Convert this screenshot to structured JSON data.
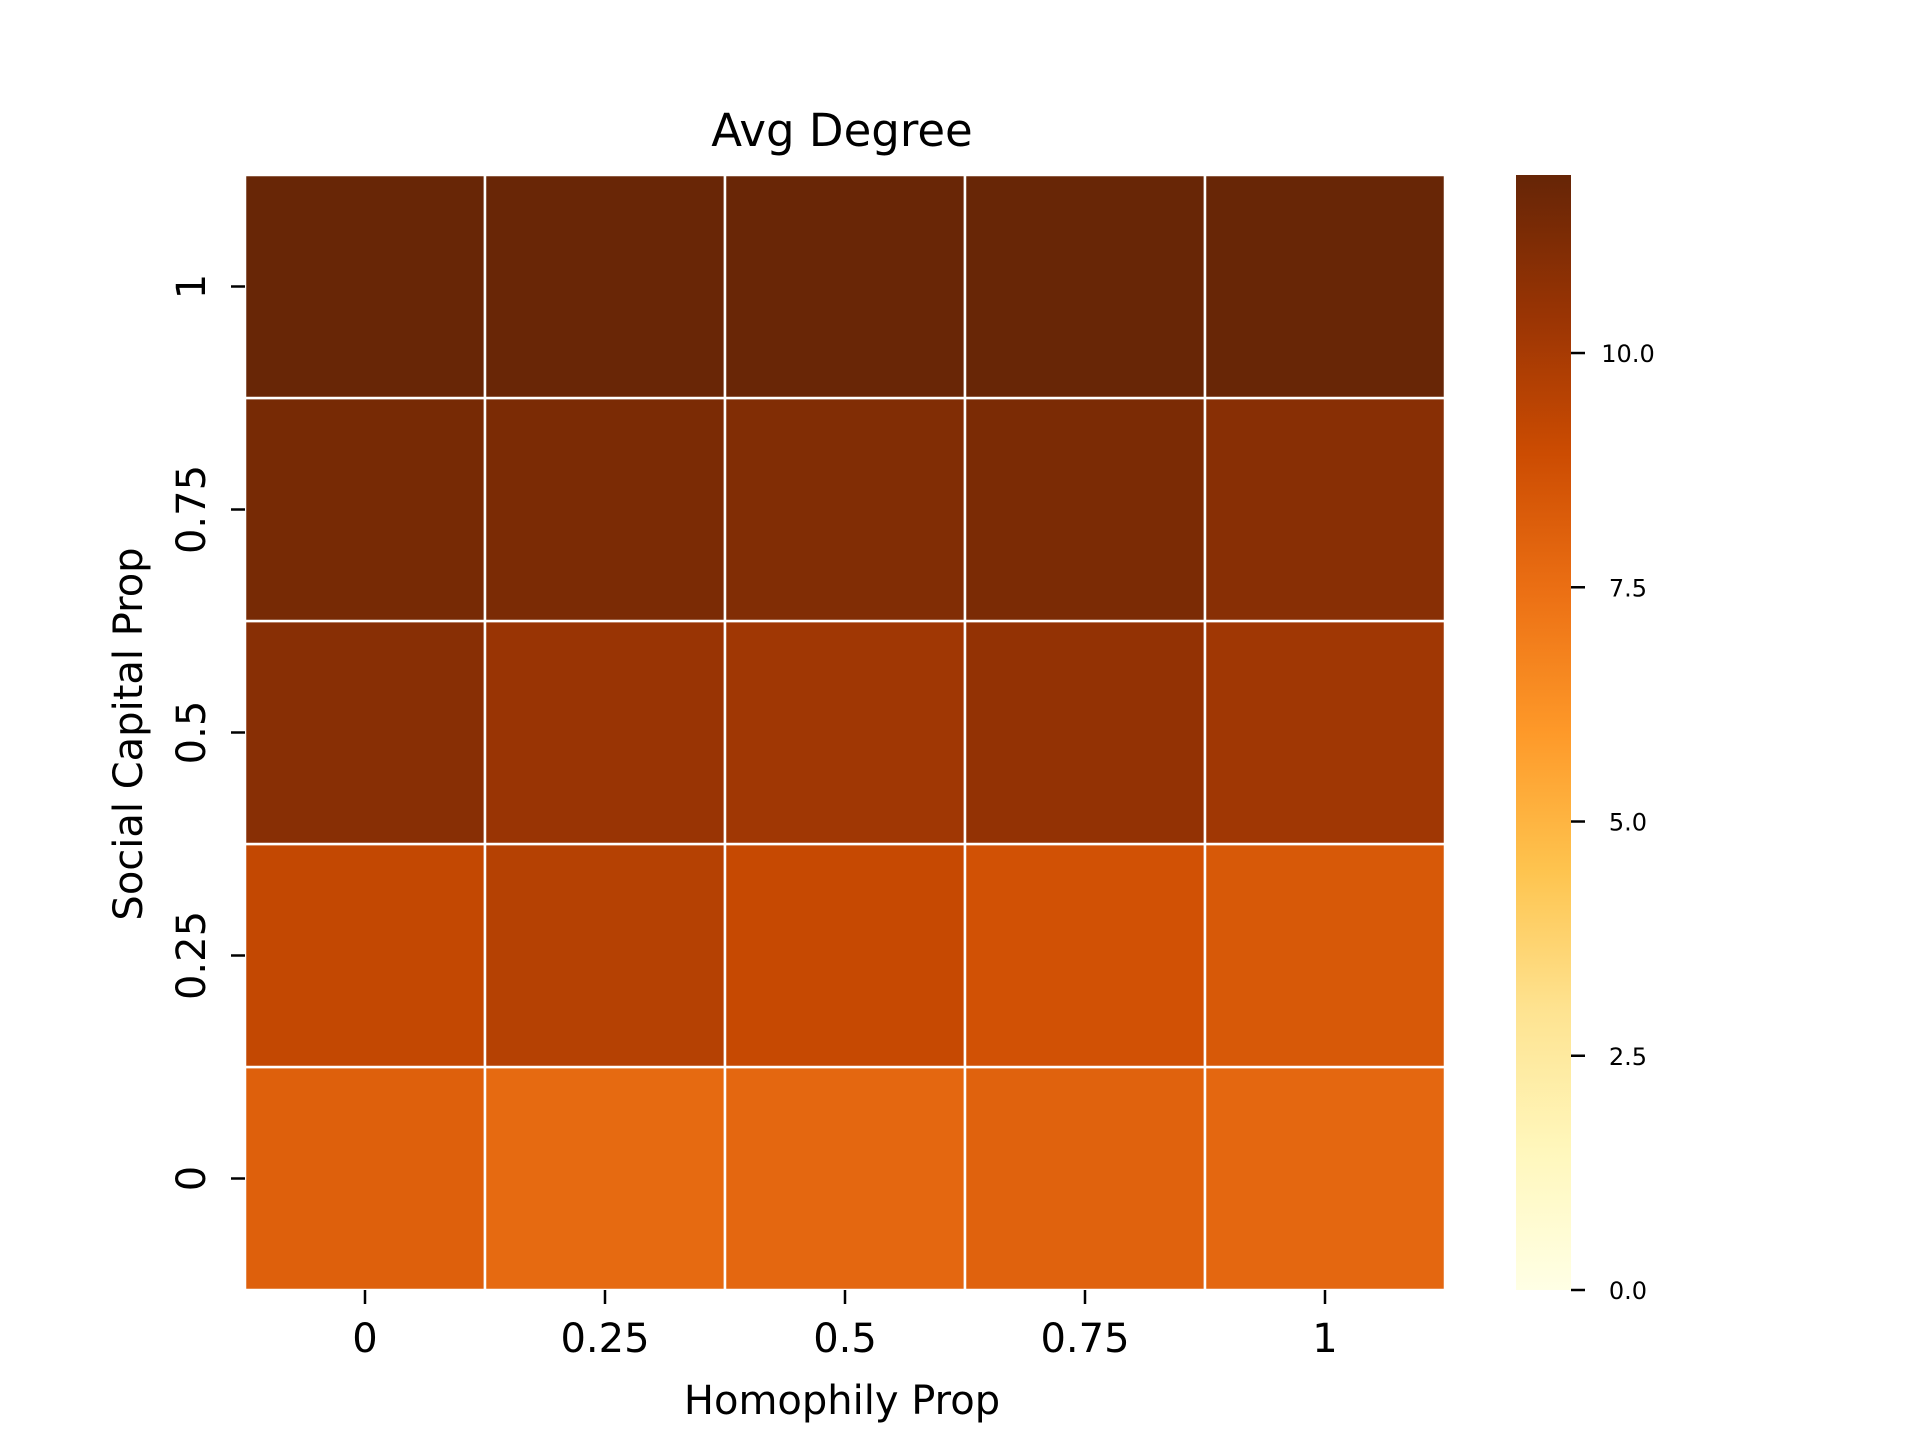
{
  "chart_data": {
    "type": "heatmap",
    "title": "Avg Degree",
    "xlabel": "Homophily Prop",
    "ylabel": "Social Capital Prop",
    "x_categories": [
      "0",
      "0.25",
      "0.5",
      "0.75",
      "1"
    ],
    "y_categories": [
      "0",
      "0.25",
      "0.5",
      "0.75",
      "1"
    ],
    "values": [
      [
        8.1,
        7.7,
        7.8,
        8.0,
        7.8
      ],
      [
        9.2,
        9.6,
        9.1,
        8.7,
        8.4
      ],
      [
        10.9,
        10.4,
        10.2,
        10.6,
        10.2
      ],
      [
        11.4,
        11.3,
        11.1,
        11.3,
        10.9
      ],
      [
        11.85,
        11.8,
        11.8,
        11.85,
        11.85
      ]
    ],
    "colormap": "YlOrBr",
    "colorbar": {
      "min": 0,
      "max": 11.9,
      "ticks": [
        0.0,
        2.5,
        5.0,
        7.5,
        10.0
      ],
      "tick_labels": [
        "0.0",
        "2.5",
        "5.0",
        "7.5",
        "10.0"
      ]
    },
    "grid": true,
    "colors": {
      "stops": [
        "#ffffe5",
        "#fff7bc",
        "#fee391",
        "#fec44f",
        "#fe9929",
        "#ec7014",
        "#cc4c02",
        "#993404",
        "#662506"
      ],
      "cell_border": "#ffffff"
    }
  }
}
